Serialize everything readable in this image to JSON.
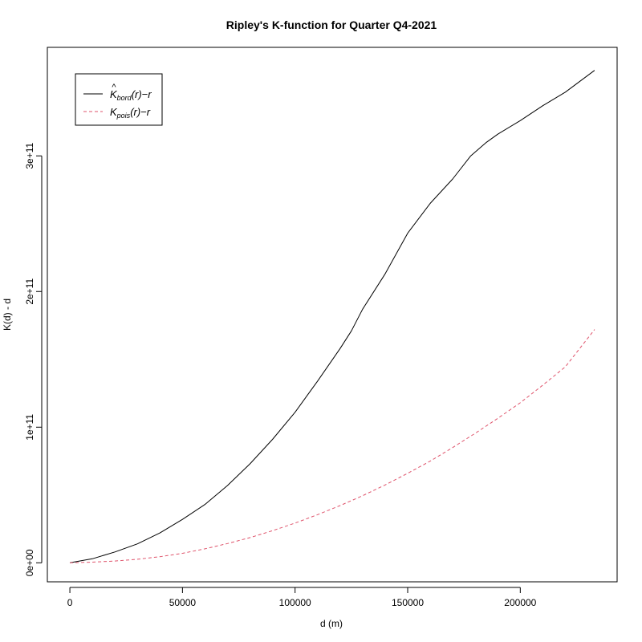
{
  "chart_data": {
    "type": "line",
    "title": "Ripley's K-function for Quarter Q4-2021",
    "xlabel": "d (m)",
    "ylabel": "K(d) - d",
    "xlim": [
      -10000,
      243000
    ],
    "ylim": [
      -14000000000,
      380000000000
    ],
    "x_ticks": [
      0,
      50000,
      100000,
      150000,
      200000
    ],
    "x_tick_labels": [
      "0",
      "50000",
      "100000",
      "150000",
      "200000"
    ],
    "y_ticks": [
      0,
      100000000000,
      200000000000,
      300000000000
    ],
    "y_tick_labels": [
      "0e+00",
      "1e+11",
      "2e+11",
      "3e+11"
    ],
    "grid": false,
    "legend": {
      "position": "top-left",
      "entries": [
        {
          "main": "K",
          "hat": "^",
          "sub": "bord",
          "suffix": "(r)−r"
        },
        {
          "main": "K",
          "hat": "",
          "sub": "pois",
          "suffix": "(r)−r"
        }
      ]
    },
    "series": [
      {
        "color": "#000000",
        "dash": "solid",
        "x": [
          0,
          10000,
          20000,
          30000,
          40000,
          50000,
          60000,
          70000,
          80000,
          90000,
          100000,
          110000,
          120000,
          125000,
          130000,
          140000,
          150000,
          160000,
          170000,
          178000,
          185000,
          190000,
          200000,
          210000,
          220000,
          233000
        ],
        "y": [
          0,
          3000000000,
          8000000000,
          14000000000,
          22000000000,
          32000000000,
          43000000000,
          57000000000,
          73000000000,
          91000000000,
          111000000000,
          134000000000,
          158000000000,
          171000000000,
          187000000000,
          213000000000,
          243000000000,
          265000000000,
          283000000000,
          300000000000,
          310000000000,
          316000000000,
          326000000000,
          337000000000,
          347000000000,
          363000000000
        ]
      },
      {
        "color": "#DF536B",
        "dash": "dashed",
        "x": [
          0,
          10000,
          20000,
          30000,
          40000,
          50000,
          60000,
          70000,
          80000,
          90000,
          100000,
          110000,
          120000,
          130000,
          140000,
          150000,
          160000,
          170000,
          180000,
          190000,
          200000,
          210000,
          220000,
          233000
        ],
        "y": [
          0,
          500000000,
          1300000000,
          2600000000,
          4500000000,
          7000000000,
          10300000000,
          14200000000,
          18600000000,
          23700000000,
          29300000000,
          35500000000,
          42200000000,
          49500000000,
          57400000000,
          66000000000,
          75000000000,
          85000000000,
          95500000000,
          106500000000,
          118000000000,
          131000000000,
          144500000000,
          172000000000
        ]
      }
    ]
  }
}
